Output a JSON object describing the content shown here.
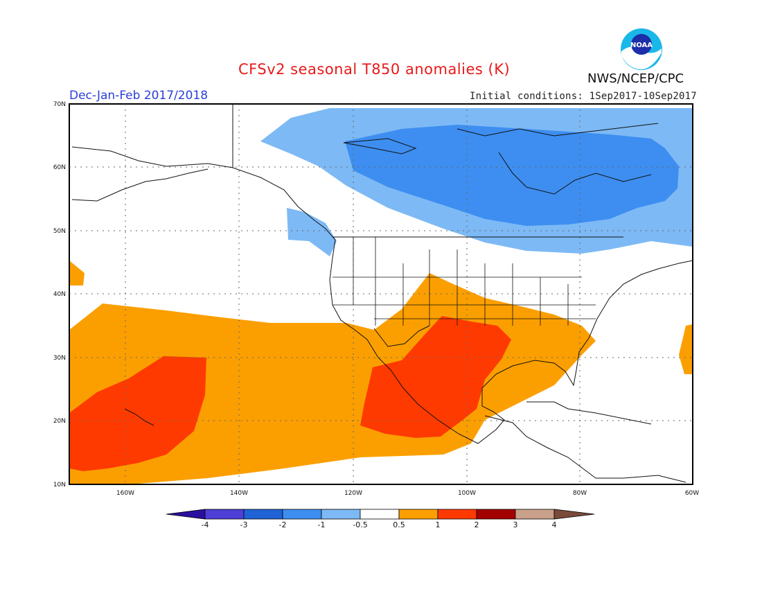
{
  "header": {
    "title": "CFSv2 seasonal T850 anomalies (K)",
    "org": "NWS/NCEP/CPC",
    "season": "Dec-Jan-Feb 2017/2018",
    "init": "Initial conditions: 1Sep2017-10Sep2017",
    "logo_text": "NOAA"
  },
  "map": {
    "lat_labels": [
      "70N",
      "60N",
      "50N",
      "40N",
      "30N",
      "20N",
      "10N"
    ],
    "lon_labels": [
      "160W",
      "140W",
      "120W",
      "100W",
      "80W",
      "60W"
    ]
  },
  "legend": {
    "labels": [
      "-4",
      "-3",
      "-2",
      "-1",
      "-0.5",
      "0.5",
      "1",
      "2",
      "3",
      "4"
    ],
    "colors": [
      "#2a0f9e",
      "#4e3fd6",
      "#1f63d6",
      "#3d8ef0",
      "#7db9f5",
      "#ffffff",
      "#fb9f00",
      "#ff3a00",
      "#a50000",
      "#c9a08a",
      "#7a4b3a"
    ]
  }
}
